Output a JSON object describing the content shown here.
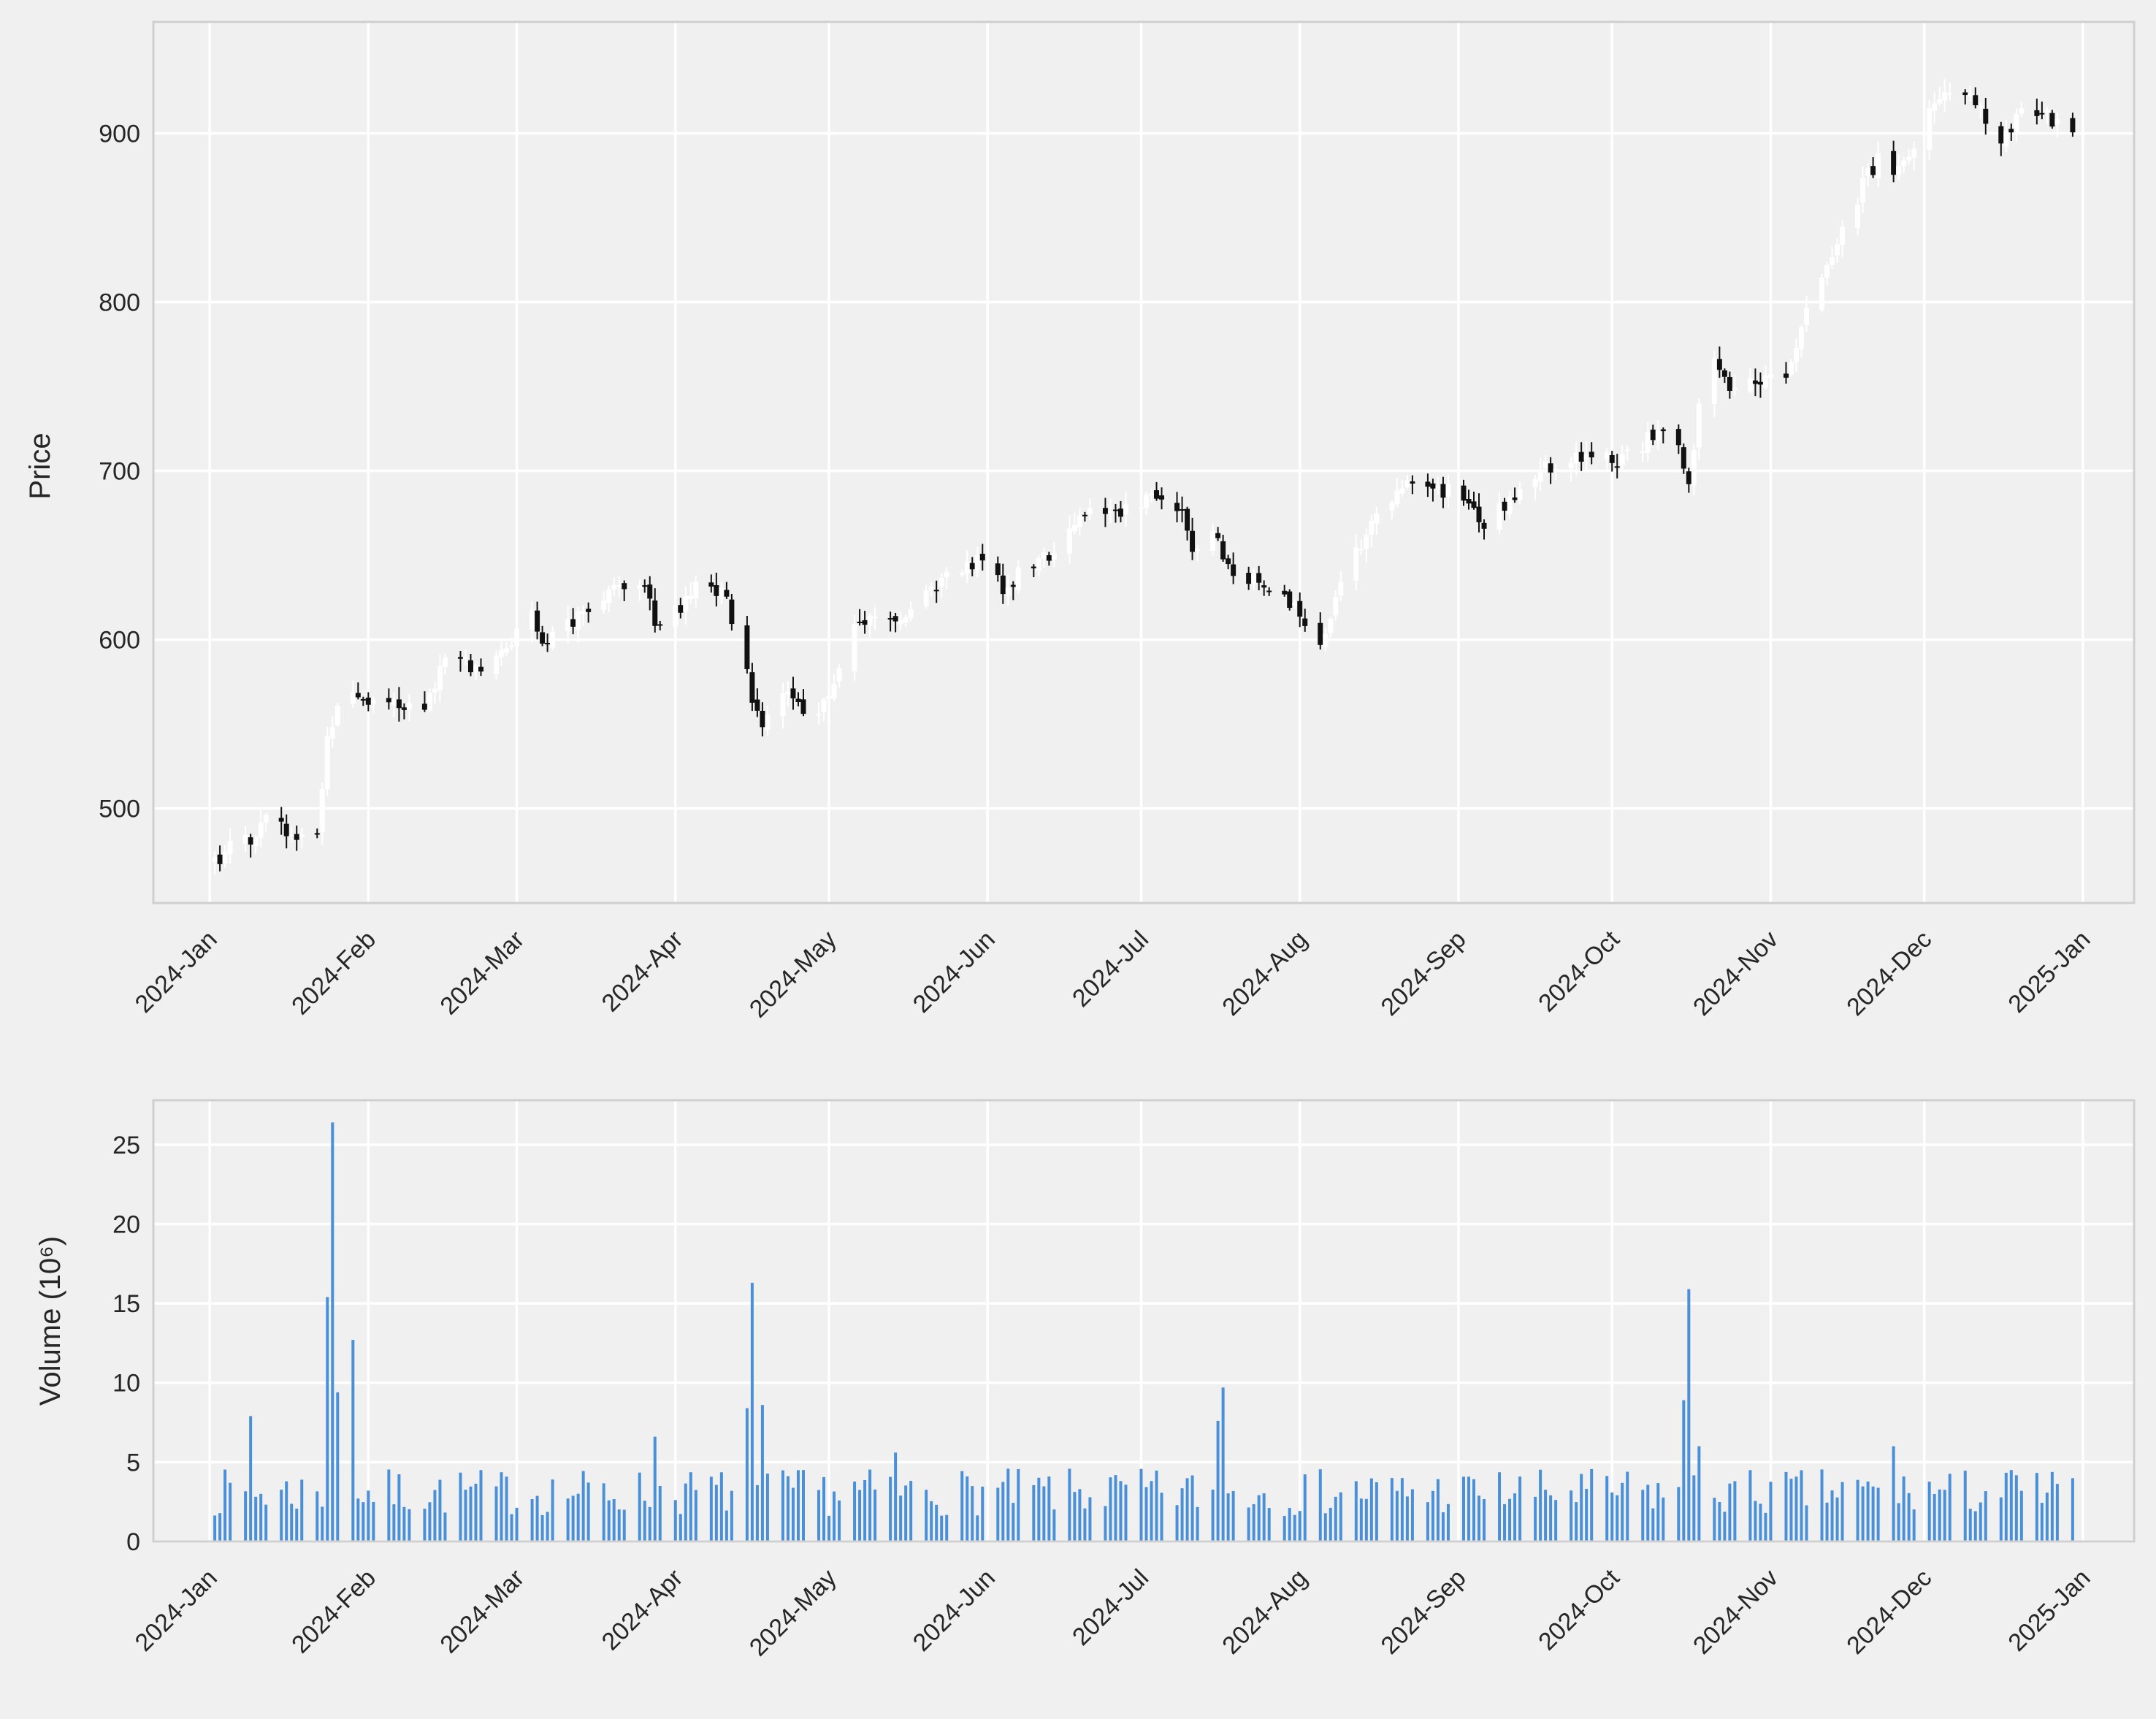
{
  "chart_data": [
    {
      "type": "candlestick",
      "title": "",
      "xlabel": "",
      "ylabel": "Price",
      "x_range": [
        "2023-12-21",
        "2025-01-11"
      ],
      "ylim": [
        444,
        966
      ],
      "yticks": [
        500,
        600,
        700,
        800,
        900
      ],
      "xticks": [
        "2024-01-01",
        "2024-02-01",
        "2024-03-01",
        "2024-04-01",
        "2024-05-01",
        "2024-06-01",
        "2024-07-01",
        "2024-08-01",
        "2024-09-01",
        "2024-10-01",
        "2024-11-01",
        "2024-12-01",
        "2025-01-01"
      ],
      "xtick_labels": [
        "2024-Jan",
        "2024-Feb",
        "2024-Mar",
        "2024-Apr",
        "2024-May",
        "2024-Jun",
        "2024-Jul",
        "2024-Aug",
        "2024-Sep",
        "2024-Oct",
        "2024-Nov",
        "2024-Dec",
        "2025-Jan"
      ],
      "grid": true,
      "colors": {
        "up": "#ffffff",
        "down": "#111111",
        "background": "#f0f0f0",
        "grid": "#ffffff",
        "frame": "#cfcfcf"
      },
      "anchors": [
        [
          "2024-01-02",
          470
        ],
        [
          "2024-01-05",
          476
        ],
        [
          "2024-01-10",
          482
        ],
        [
          "2024-01-12",
          497
        ],
        [
          "2024-01-16",
          484
        ],
        [
          "2024-01-22",
          487
        ],
        [
          "2024-01-24",
          543
        ],
        [
          "2024-01-26",
          562
        ],
        [
          "2024-01-30",
          568
        ],
        [
          "2024-02-05",
          562
        ],
        [
          "2024-02-09",
          561
        ],
        [
          "2024-02-12",
          558
        ],
        [
          "2024-02-16",
          590
        ],
        [
          "2024-02-22",
          582
        ],
        [
          "2024-02-29",
          600
        ],
        [
          "2024-03-04",
          617
        ],
        [
          "2024-03-06",
          600
        ],
        [
          "2024-03-13",
          612
        ],
        [
          "2024-03-19",
          628
        ],
        [
          "2024-03-26",
          628
        ],
        [
          "2024-03-28",
          612
        ],
        [
          "2024-04-02",
          618
        ],
        [
          "2024-04-05",
          630
        ],
        [
          "2024-04-10",
          629
        ],
        [
          "2024-04-12",
          613
        ],
        [
          "2024-04-16",
          566
        ],
        [
          "2024-04-18",
          552
        ],
        [
          "2024-04-22",
          570
        ],
        [
          "2024-04-29",
          553
        ],
        [
          "2024-05-03",
          585
        ],
        [
          "2024-05-07",
          612
        ],
        [
          "2024-05-15",
          615
        ],
        [
          "2024-05-21",
          630
        ],
        [
          "2024-05-24",
          640
        ],
        [
          "2024-05-30",
          645
        ],
        [
          "2024-06-04",
          632
        ],
        [
          "2024-06-12",
          648
        ],
        [
          "2024-06-18",
          665
        ],
        [
          "2024-06-21",
          682
        ],
        [
          "2024-06-24",
          678
        ],
        [
          "2024-06-27",
          675
        ],
        [
          "2024-07-03",
          683
        ],
        [
          "2024-07-09",
          678
        ],
        [
          "2024-07-11",
          655
        ],
        [
          "2024-07-15",
          660
        ],
        [
          "2024-07-19",
          642
        ],
        [
          "2024-07-26",
          632
        ],
        [
          "2024-07-31",
          618
        ],
        [
          "2024-08-05",
          595
        ],
        [
          "2024-08-08",
          625
        ],
        [
          "2024-08-14",
          665
        ],
        [
          "2024-08-20",
          690
        ],
        [
          "2024-08-26",
          692
        ],
        [
          "2024-08-30",
          688
        ],
        [
          "2024-09-03",
          680
        ],
        [
          "2024-09-06",
          670
        ],
        [
          "2024-09-12",
          685
        ],
        [
          "2024-09-17",
          700
        ],
        [
          "2024-09-20",
          705
        ],
        [
          "2024-09-25",
          710
        ],
        [
          "2024-09-30",
          708
        ],
        [
          "2024-10-03",
          705
        ],
        [
          "2024-10-10",
          725
        ],
        [
          "2024-10-14",
          715
        ],
        [
          "2024-10-16",
          690
        ],
        [
          "2024-10-18",
          742
        ],
        [
          "2024-10-21",
          762
        ],
        [
          "2024-10-24",
          752
        ],
        [
          "2024-10-31",
          755
        ],
        [
          "2024-11-04",
          760
        ],
        [
          "2024-11-08",
          795
        ],
        [
          "2024-11-13",
          825
        ],
        [
          "2024-11-19",
          870
        ],
        [
          "2024-11-22",
          885
        ],
        [
          "2024-11-25",
          875
        ],
        [
          "2024-11-29",
          895
        ],
        [
          "2024-12-04",
          925
        ],
        [
          "2024-12-10",
          920
        ],
        [
          "2024-12-13",
          910
        ],
        [
          "2024-12-16",
          895
        ],
        [
          "2024-12-20",
          912
        ],
        [
          "2024-12-24",
          915
        ],
        [
          "2024-12-30",
          896
        ]
      ],
      "volatility": 5,
      "seed": 1
    },
    {
      "type": "bar",
      "title": "",
      "xlabel": "",
      "ylabel": "Volume (10⁶)",
      "x_range": [
        "2023-12-21",
        "2025-01-11"
      ],
      "ylim": [
        0,
        27.8
      ],
      "yticks": [
        0,
        5,
        10,
        15,
        20,
        25
      ],
      "xticks": [
        "2024-01-01",
        "2024-02-01",
        "2024-03-01",
        "2024-04-01",
        "2024-05-01",
        "2024-06-01",
        "2024-07-01",
        "2024-08-01",
        "2024-09-01",
        "2024-10-01",
        "2024-11-01",
        "2024-12-01",
        "2025-01-01"
      ],
      "xtick_labels": [
        "2024-Jan",
        "2024-Feb",
        "2024-Mar",
        "2024-Apr",
        "2024-May",
        "2024-Jun",
        "2024-Jul",
        "2024-Aug",
        "2024-Sep",
        "2024-Oct",
        "2024-Nov",
        "2024-Dec",
        "2025-Jan"
      ],
      "grid": true,
      "colors": {
        "bar": "#4a90d9"
      },
      "base_range": [
        1.6,
        4.6
      ],
      "spikes": [
        [
          "2024-01-09",
          7.9
        ],
        [
          "2024-01-24",
          15.4
        ],
        [
          "2024-01-25",
          26.4
        ],
        [
          "2024-01-26",
          9.4
        ],
        [
          "2024-01-29",
          12.7
        ],
        [
          "2024-03-28",
          6.6
        ],
        [
          "2024-04-15",
          8.4
        ],
        [
          "2024-04-16",
          16.3
        ],
        [
          "2024-04-18",
          8.6
        ],
        [
          "2024-05-14",
          5.6
        ],
        [
          "2024-07-16",
          7.6
        ],
        [
          "2024-07-17",
          9.7
        ],
        [
          "2024-10-15",
          8.9
        ],
        [
          "2024-10-16",
          15.9
        ],
        [
          "2024-10-18",
          6.0
        ],
        [
          "2024-11-25",
          6.0
        ],
        [
          "2024-12-18",
          4.5
        ]
      ],
      "seed": 7
    }
  ]
}
